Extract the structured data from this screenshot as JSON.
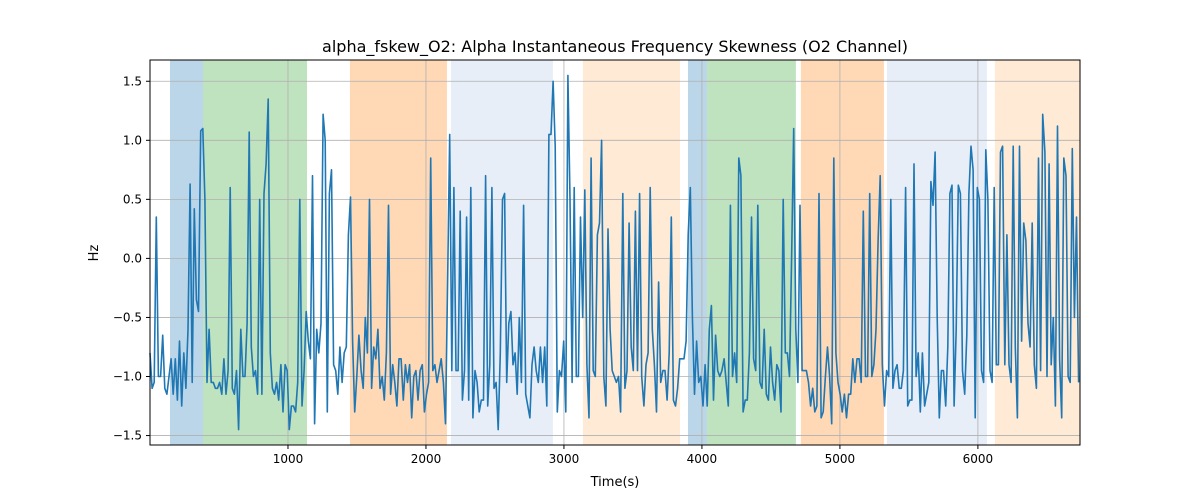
{
  "chart_data": {
    "type": "line",
    "title": "alpha_fskew_O2: Alpha Instantaneous Frequency Skewness (O2 Channel)",
    "xlabel": "Time(s)",
    "ylabel": "Hz",
    "xlim": [
      0,
      6740
    ],
    "ylim": [
      -1.58,
      1.68
    ],
    "grid": true,
    "x_ticks": [
      1000,
      2000,
      3000,
      4000,
      5000,
      6000
    ],
    "x_tick_labels": [
      "1000",
      "2000",
      "3000",
      "4000",
      "5000",
      "6000"
    ],
    "y_ticks": [
      -1.5,
      -1.0,
      -0.5,
      0.0,
      0.5,
      1.0,
      1.5
    ],
    "y_tick_labels": [
      "−1.5",
      "−1.0",
      "−0.5",
      "0.0",
      "0.5",
      "1.0",
      "1.5"
    ],
    "line_color": "#1f77b4",
    "regions": [
      {
        "start": 145,
        "end": 384,
        "color": "#1f77b4",
        "opacity": 0.3
      },
      {
        "start": 384,
        "end": 1138,
        "color": "#2ca02c",
        "opacity": 0.3
      },
      {
        "start": 1449,
        "end": 2152,
        "color": "#ff7f0e",
        "opacity": 0.3
      },
      {
        "start": 2181,
        "end": 2920,
        "color": "#aec7e8",
        "opacity": 0.3
      },
      {
        "start": 3138,
        "end": 3841,
        "color": "#ffbb78",
        "opacity": 0.3
      },
      {
        "start": 3899,
        "end": 4036,
        "color": "#1f77b4",
        "opacity": 0.3
      },
      {
        "start": 4036,
        "end": 4681,
        "color": "#2ca02c",
        "opacity": 0.3
      },
      {
        "start": 4717,
        "end": 5319,
        "color": "#ff7f0e",
        "opacity": 0.3
      },
      {
        "start": 5341,
        "end": 6065,
        "color": "#aec7e8",
        "opacity": 0.3
      },
      {
        "start": 6123,
        "end": 6740,
        "color": "#ffbb78",
        "opacity": 0.3
      }
    ],
    "series": [
      {
        "name": "alpha_fskew_O2",
        "x_range": [
          0,
          6730
        ],
        "values": [
          -0.8,
          -1.1,
          -1.05,
          0.35,
          -1.0,
          -1.0,
          -0.65,
          -1.1,
          -1.15,
          -1.0,
          -0.85,
          -1.15,
          -0.85,
          -1.2,
          -0.7,
          -1.25,
          -0.8,
          -1.1,
          -0.6,
          0.63,
          -1.05,
          0.42,
          -0.35,
          -0.45,
          1.08,
          1.1,
          0.5,
          -1.05,
          -0.6,
          -1.05,
          -1.05,
          -1.1,
          -1.1,
          -1.05,
          -1.15,
          -0.85,
          -1.15,
          -0.95,
          0.6,
          -1.1,
          -1.15,
          -0.95,
          -1.45,
          -0.6,
          -1.0,
          -1.0,
          -0.55,
          1.07,
          -0.75,
          -1.0,
          -0.95,
          -1.15,
          0.5,
          -1.15,
          0.55,
          0.8,
          1.35,
          -0.8,
          -1.1,
          -1.15,
          -1.05,
          -1.2,
          -0.9,
          -1.3,
          -0.9,
          -0.95,
          -1.45,
          -1.25,
          -1.25,
          -1.3,
          -1.05,
          0.5,
          -1.25,
          -0.95,
          -0.45,
          -0.7,
          -0.85,
          0.7,
          -1.4,
          -0.6,
          -0.8,
          -0.55,
          1.22,
          1.0,
          -1.3,
          0.55,
          0.75,
          -0.9,
          -0.95,
          -1.15,
          -0.75,
          -1.05,
          -0.8,
          -0.75,
          0.2,
          0.52,
          -0.7,
          -1.3,
          -1.0,
          -0.65,
          -0.95,
          -1.1,
          -0.5,
          -0.8,
          0.5,
          -1.1,
          -0.75,
          -0.85,
          -0.6,
          -1.1,
          -1.0,
          -1.2,
          -0.8,
          0.45,
          -1.15,
          -0.9,
          -1.05,
          -1.25,
          -0.85,
          -0.85,
          -1.2,
          -0.9,
          -1.05,
          -0.9,
          -1.35,
          -1.0,
          -0.95,
          -1.2,
          -0.95,
          -0.9,
          -1.3,
          -1.15,
          -1.05,
          0.85,
          -0.95,
          -0.9,
          -1.05,
          -0.95,
          -0.85,
          -1.05,
          -1.4,
          -0.2,
          1.05,
          -0.95,
          0.6,
          -0.95,
          -0.95,
          0.4,
          -1.2,
          -0.95,
          0.35,
          -1.2,
          0.6,
          -1.35,
          -0.95,
          -1.05,
          -1.3,
          -1.2,
          -1.2,
          0.7,
          -1.25,
          -0.9,
          0.6,
          -1.1,
          -1.05,
          -1.45,
          -0.8,
          0.5,
          0.55,
          -1.05,
          -0.55,
          -0.45,
          -0.9,
          -0.8,
          -1.15,
          -0.5,
          -1.05,
          0.45,
          -1.15,
          -1.25,
          -1.35,
          -0.9,
          -0.75,
          -0.95,
          -1.05,
          -0.75,
          -1.05,
          -0.75,
          -1.25,
          1.05,
          1.05,
          1.5,
          0.95,
          -1.3,
          -0.95,
          -1.0,
          -0.7,
          -1.3,
          1.55,
          0.5,
          -1.05,
          0.6,
          -1.0,
          -1.0,
          0.35,
          -0.5,
          0.58,
          -0.9,
          -1.35,
          0.85,
          -0.95,
          -1.0,
          0.2,
          0.3,
          1.0,
          -1.0,
          -1.25,
          0.25,
          -0.6,
          -0.95,
          -1.0,
          -1.05,
          -1.0,
          -1.3,
          0.55,
          -1.1,
          -0.95,
          0.3,
          -0.75,
          -0.95,
          0.4,
          -0.95,
          0.55,
          -1.0,
          -1.25,
          -0.9,
          -0.8,
          0.6,
          -0.6,
          -0.9,
          -1.3,
          -0.2,
          -1.05,
          -0.95,
          -0.95,
          -1.2,
          -0.8,
          0.35,
          -1.2,
          -1.25,
          -1.1,
          -0.85,
          -0.85,
          -0.85,
          -0.7,
          0.2,
          0.6,
          -0.5,
          -1.15,
          -0.7,
          -1.05,
          -1.0,
          -1.25,
          -0.9,
          -1.25,
          -0.6,
          -0.4,
          -1.2,
          -0.65,
          -0.95,
          -1.0,
          -0.95,
          -0.85,
          -1.05,
          -1.25,
          0.45,
          -1.0,
          -0.8,
          -1.05,
          0.85,
          0.7,
          -1.3,
          -1.2,
          -1.2,
          -0.8,
          0.35,
          -0.85,
          -0.95,
          0.45,
          -1.05,
          -1.1,
          -0.6,
          -1.15,
          -1.2,
          -0.75,
          -1.05,
          -1.2,
          -0.9,
          -0.95,
          -1.3,
          0.5,
          -0.8,
          -0.8,
          -1.0,
          0.0,
          1.1,
          -0.6,
          -1.05,
          0.45,
          -0.95,
          -0.95,
          -0.95,
          -1.05,
          -1.25,
          -1.1,
          -1.3,
          -1.25,
          0.55,
          -1.35,
          -1.3,
          -1.0,
          -0.75,
          -1.0,
          -1.4,
          0.85,
          -0.8,
          -1.05,
          -1.15,
          -1.3,
          -1.15,
          -1.35,
          -1.15,
          -1.15,
          -0.85,
          -1.05,
          -0.85,
          -0.85,
          -1.05,
          0.4,
          -1.0,
          -1.0,
          0.55,
          -1.0,
          -0.9,
          -0.6,
          0.15,
          0.7,
          -0.9,
          -1.25,
          -0.95,
          -1.0,
          0.5,
          -1.1,
          -0.95,
          -0.9,
          -1.1,
          -1.1,
          -0.95,
          0.6,
          -1.25,
          -1.2,
          -1.2,
          0.8,
          -1.0,
          -0.8,
          -1.3,
          -0.8,
          -1.25,
          -1.15,
          -1.05,
          0.65,
          0.45,
          0.9,
          -0.5,
          -1.35,
          -0.95,
          -0.95,
          -1.25,
          -0.75,
          0.55,
          0.62,
          -1.25,
          -0.6,
          0.62,
          0.55,
          -0.95,
          -1.15,
          -0.65,
          0.55,
          0.95,
          0.75,
          -1.35,
          0.6,
          0.5,
          -0.95,
          -1.05,
          0.92,
          0.5,
          -0.95,
          -1.05,
          0.6,
          -0.9,
          -0.9,
          0.9,
          0.95,
          -0.9,
          0.2,
          -0.9,
          -1.05,
          0.95,
          -0.75,
          -1.35,
          0.95,
          -0.7,
          0.3,
          0.15,
          -0.55,
          -0.75,
          0.3,
          -0.9,
          -1.1,
          0.85,
          -0.95,
          1.22,
          0.9,
          -1.0,
          0.8,
          -0.9,
          -0.5,
          -1.25,
          1.12,
          -0.85,
          -1.35,
          0.85,
          0.7,
          -1.0,
          -1.05,
          0.93,
          -0.5,
          0.35,
          -1.05
        ]
      }
    ]
  }
}
